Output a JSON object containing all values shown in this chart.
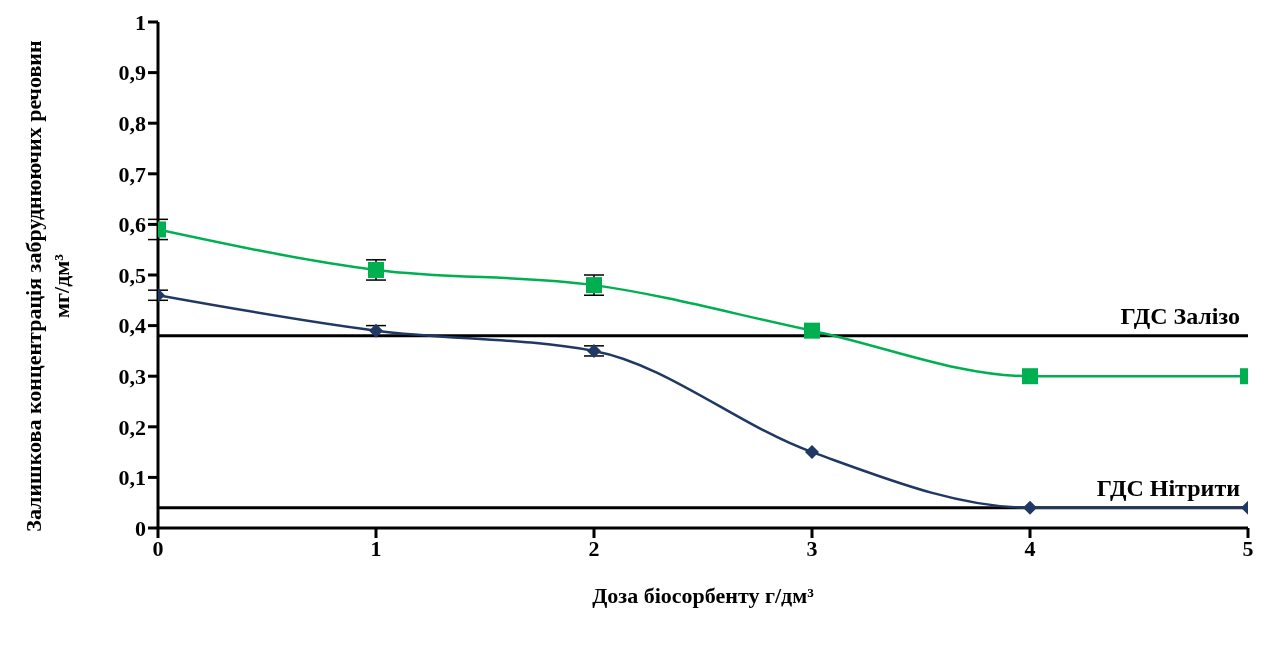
{
  "chart_data": {
    "type": "line",
    "xlabel": "Доза біосорбенту г/дм³",
    "ylabel": "Залишкова концентрація забруднюючих речовин мг/дм³",
    "x": [
      0,
      1,
      2,
      3,
      4,
      5
    ],
    "series": [
      {
        "color": "#00b050",
        "marker": "square",
        "values": [
          0.59,
          0.51,
          0.48,
          0.39,
          0.3,
          0.3
        ],
        "errors": [
          0.02,
          0.02,
          0.02,
          null,
          null,
          null
        ]
      },
      {
        "color": "#1f3864",
        "marker": "diamond",
        "values": [
          0.46,
          0.39,
          0.35,
          0.15,
          0.04,
          0.04
        ],
        "errors": [
          0.01,
          0.01,
          0.01,
          null,
          null,
          null
        ]
      }
    ],
    "xlim": [
      0,
      5
    ],
    "xticks": [
      0,
      1,
      2,
      3,
      4,
      5
    ],
    "ylim": [
      0,
      1
    ],
    "yticks": [
      0,
      {
        "value": 0.1,
        "label": "0,1"
      },
      {
        "value": 0.2,
        "label": "0,2"
      },
      {
        "value": 0.3,
        "label": "0,3"
      },
      {
        "value": 0.4,
        "label": "0,4"
      },
      {
        "value": 0.5,
        "label": "0,5"
      },
      {
        "value": 0.6,
        "label": "0,6"
      },
      {
        "value": 0.7,
        "label": "0,7"
      },
      {
        "value": 0.8,
        "label": "0,8"
      },
      {
        "value": 0.9,
        "label": "0,9"
      },
      1
    ],
    "ref_lines": [
      {
        "axis": "y",
        "value": 0.38,
        "label": "ГДС Залізо",
        "color": "#000000"
      },
      {
        "axis": "y",
        "value": 0.04,
        "label": "ГДС Нітрити",
        "color": "#000000"
      }
    ],
    "line_style": "solid"
  }
}
